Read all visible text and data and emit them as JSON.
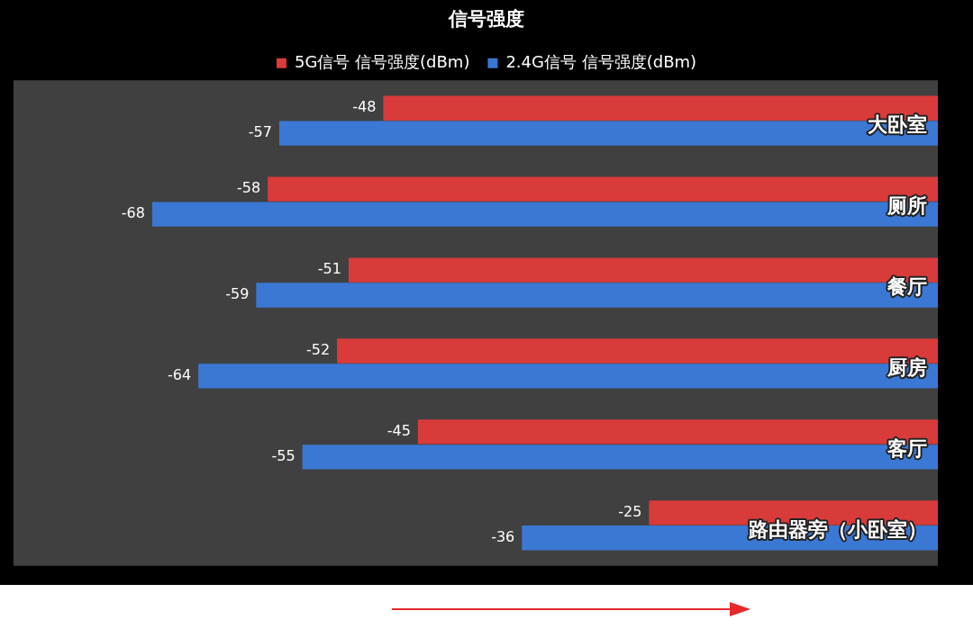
{
  "chart_data": {
    "type": "bar",
    "orientation": "horizontal",
    "title": "信号强度",
    "categories": [
      "大卧室",
      "厕所",
      "餐厅",
      "厨房",
      "客厅",
      "路由器旁（小卧室）"
    ],
    "series": [
      {
        "name": "5G信号 信号强度(dBm)",
        "color": "#d93a3a",
        "values": [
          -48,
          -58,
          -51,
          -52,
          -45,
          -25
        ]
      },
      {
        "name": "2.4G信号 信号强度(dBm)",
        "color": "#3a78d4",
        "values": [
          -57,
          -68,
          -59,
          -64,
          -55,
          -36
        ]
      }
    ],
    "xlim": [
      -80,
      0
    ],
    "tick_labels": "y",
    "grid": false,
    "legend": "top",
    "data_labels": true
  }
}
